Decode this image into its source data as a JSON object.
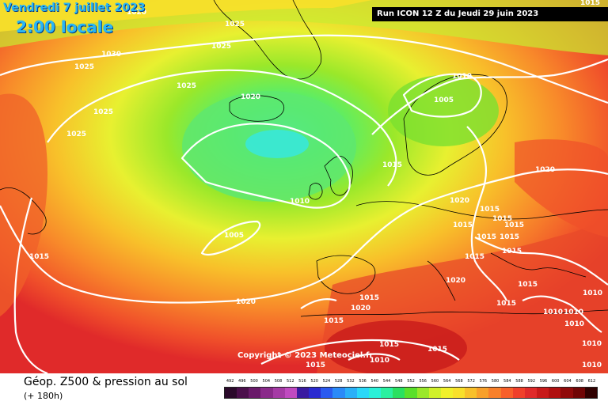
{
  "header": {
    "date_label": "Vendredi 7 juillet 2023",
    "time_label": "2:00 locale",
    "run_label": "Run ICON 12 Z du Jeudi 29 juin 2023"
  },
  "map": {
    "copyright": "Copyright © 2023 Meteociel.fr",
    "isobar_labels": [
      {
        "id": "1020-a",
        "text": "1020"
      },
      {
        "id": "1025-a",
        "text": "1025"
      },
      {
        "id": "1025-b",
        "text": "1025"
      },
      {
        "id": "1030",
        "text": "1030"
      },
      {
        "id": "1025-c",
        "text": "1025"
      },
      {
        "id": "1025-d",
        "text": "1025"
      },
      {
        "id": "1025-e",
        "text": "1025"
      },
      {
        "id": "1025-f",
        "text": "1025"
      },
      {
        "id": "1020-b",
        "text": "1020"
      },
      {
        "id": "1010-a",
        "text": "1010"
      },
      {
        "id": "1005-a",
        "text": "1005"
      },
      {
        "id": "1015-a",
        "text": "1015"
      },
      {
        "id": "1020-c",
        "text": "1020"
      },
      {
        "id": "1010-b",
        "text": "1010"
      },
      {
        "id": "1005-b",
        "text": "1005"
      },
      {
        "id": "1015-b",
        "text": "1015"
      },
      {
        "id": "1020-d",
        "text": "1020"
      },
      {
        "id": "1015-c",
        "text": "1015"
      },
      {
        "id": "1015-d",
        "text": "1015"
      },
      {
        "id": "1015-e",
        "text": "1015"
      },
      {
        "id": "1015-f",
        "text": "1015"
      },
      {
        "id": "1015-g",
        "text": "1015"
      },
      {
        "id": "1015-h",
        "text": "1015"
      },
      {
        "id": "1015-i",
        "text": "1015"
      },
      {
        "id": "1020-e",
        "text": "1020"
      },
      {
        "id": "1015-j",
        "text": "1015"
      },
      {
        "id": "1015-k",
        "text": "1015"
      },
      {
        "id": "1015-l",
        "text": "1015"
      },
      {
        "id": "1010-c",
        "text": "1010"
      },
      {
        "id": "1010-d",
        "text": "1010"
      },
      {
        "id": "1010-e",
        "text": "1010"
      },
      {
        "id": "1010-f",
        "text": "1010"
      },
      {
        "id": "1010-g",
        "text": "1010"
      },
      {
        "id": "1020-f",
        "text": "1020"
      },
      {
        "id": "1020-g",
        "text": "1020"
      },
      {
        "id": "1015-m",
        "text": "1015"
      },
      {
        "id": "1015-n",
        "text": "1015"
      },
      {
        "id": "1015-o",
        "text": "1015"
      },
      {
        "id": "1010-h",
        "text": "1010"
      },
      {
        "id": "1015-p",
        "text": "1015"
      },
      {
        "id": "1010-i",
        "text": "1010"
      },
      {
        "id": "1015-q",
        "text": "1015"
      },
      {
        "id": "1015-r",
        "text": "1015"
      }
    ]
  },
  "legend": {
    "title": "Géop. Z500 & pression au sol",
    "subtitle": "(+ 180h)",
    "scale_values": [
      "492",
      "496",
      "500",
      "504",
      "508",
      "512",
      "516",
      "520",
      "524",
      "528",
      "532",
      "536",
      "540",
      "544",
      "548",
      "552",
      "556",
      "560",
      "564",
      "568",
      "572",
      "576",
      "580",
      "584",
      "588",
      "592",
      "596",
      "600",
      "604",
      "608",
      "612"
    ],
    "scale_colors": [
      "#2b0a2b",
      "#4b0f4b",
      "#6a1a6a",
      "#8a2a8a",
      "#a53aa5",
      "#c04ac0",
      "#3a1aa0",
      "#2a2ad0",
      "#2a5af0",
      "#2a8af8",
      "#2ab0f8",
      "#2ad8f8",
      "#2af0d8",
      "#2af0a0",
      "#2ae060",
      "#5ae02a",
      "#9ae82a",
      "#d0f02a",
      "#f0f02a",
      "#f8e02a",
      "#f8c02a",
      "#f8a02a",
      "#f8802a",
      "#f8602a",
      "#f0402a",
      "#e02a2a",
      "#c81a1a",
      "#b01010",
      "#900a0a",
      "#700505",
      "#300000"
    ]
  },
  "colors": {
    "isobar": "#ffffff",
    "title_text": "#29b6f6",
    "run_bar_bg": "#000000"
  }
}
